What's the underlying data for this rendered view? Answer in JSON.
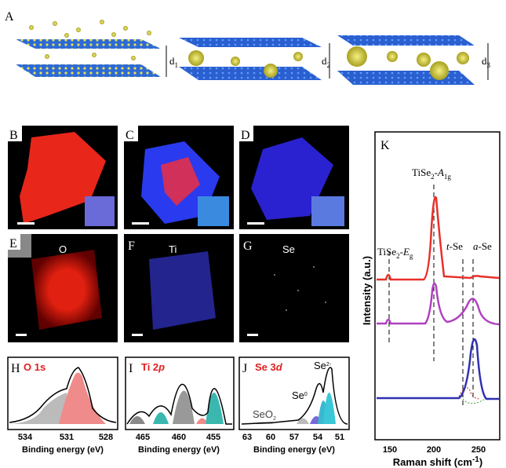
{
  "panels": {
    "A": {
      "label": "A",
      "spacings": [
        {
          "base": "d",
          "sub": "1"
        },
        {
          "base": "d",
          "sub": "2"
        },
        {
          "base": "d",
          "sub": "3"
        }
      ]
    },
    "B": {
      "label": "B"
    },
    "C": {
      "label": "C"
    },
    "D": {
      "label": "D"
    },
    "E": {
      "label": "E",
      "element": "O"
    },
    "F": {
      "label": "F",
      "element": "Ti"
    },
    "G": {
      "label": "G",
      "element": "Se"
    },
    "H": {
      "label": "H",
      "title": "O 1s",
      "xticks": [
        534,
        531,
        528
      ],
      "xlabel": "Binding energy (eV)"
    },
    "I": {
      "label": "I",
      "title": {
        "text": "Ti 2",
        "italic": "p"
      },
      "xticks": [
        465,
        460,
        455
      ],
      "xlabel": "Binding energy (eV)"
    },
    "J": {
      "label": "J",
      "title": {
        "text": "Se 3",
        "italic": "d"
      },
      "xticks": [
        63,
        60,
        57,
        54,
        51
      ],
      "xlabel": "Binding energy (eV)",
      "annotations": {
        "seo2": {
          "base": "SeO",
          "sub": "2"
        },
        "se0": {
          "base": "Se",
          "sup": "0"
        },
        "se2": {
          "base": "Se",
          "sup": "2-"
        }
      }
    },
    "K": {
      "label": "K",
      "ylabel": "Intensity (a.u.)",
      "xlabel": {
        "text": "Raman shift (cm",
        "sup": "-1",
        "close": ")"
      },
      "xticks": [
        150,
        200,
        250
      ],
      "annotations": {
        "a1g": {
          "base": "TiSe",
          "sub": "2",
          "mid": "-",
          "italic": "A",
          "sub2": "1g"
        },
        "eg": {
          "base": "TiSe",
          "sub": "2",
          "mid": "-",
          "italic": "E",
          "sub2": "g"
        },
        "tse": {
          "italic": "t",
          "rest": "-Se"
        },
        "ase": {
          "italic": "a",
          "rest": "-Se"
        }
      }
    }
  }
}
